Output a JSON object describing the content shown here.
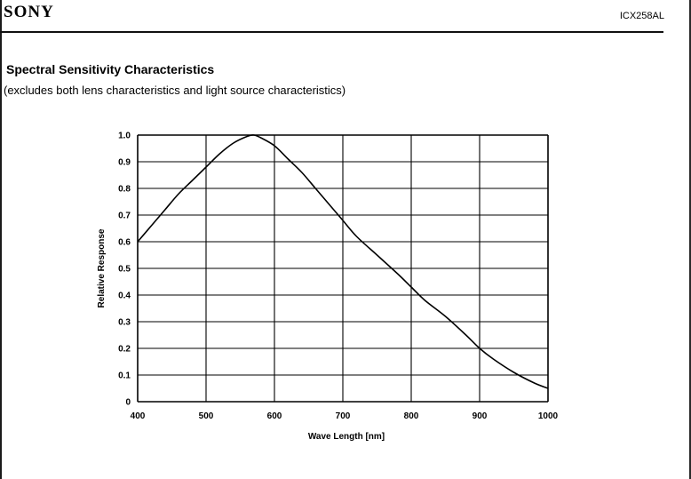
{
  "header": {
    "brand": "SONY",
    "model": "ICX258AL"
  },
  "section": {
    "title": "Spectral Sensitivity Characteristics",
    "subtitle": "(excludes both lens characteristics and light source characteristics)"
  },
  "chart_data": {
    "type": "line",
    "title": "",
    "xlabel": "Wave Length [nm]",
    "ylabel": "Relative Response",
    "xlim": [
      400,
      1000
    ],
    "ylim": [
      0,
      1.0
    ],
    "grid": true,
    "x_ticks": [
      400,
      500,
      600,
      700,
      800,
      900,
      1000
    ],
    "y_ticks": [
      "0",
      "0.1",
      "0.2",
      "0.3",
      "0.4",
      "0.5",
      "0.6",
      "0.7",
      "0.8",
      "0.9",
      "1.0"
    ],
    "series": [
      {
        "x": [
          400,
          420,
          440,
          460,
          480,
          500,
          520,
          540,
          560,
          570,
          580,
          600,
          620,
          640,
          660,
          680,
          700,
          720,
          750,
          780,
          800,
          820,
          850,
          880,
          900,
          920,
          950,
          980,
          1000
        ],
        "values": [
          0.6,
          0.66,
          0.72,
          0.78,
          0.83,
          0.88,
          0.93,
          0.97,
          0.995,
          1.0,
          0.99,
          0.96,
          0.91,
          0.86,
          0.8,
          0.74,
          0.68,
          0.62,
          0.55,
          0.48,
          0.43,
          0.38,
          0.32,
          0.25,
          0.2,
          0.16,
          0.11,
          0.07,
          0.05
        ]
      }
    ]
  }
}
